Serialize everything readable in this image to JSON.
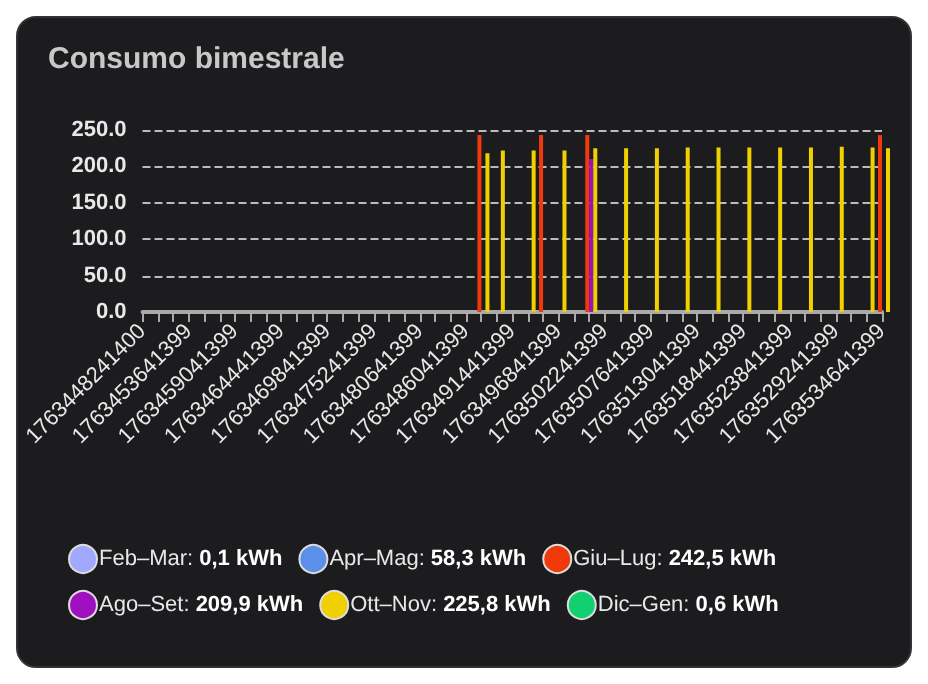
{
  "chart_data": {
    "type": "bar",
    "title": "Consumo bimestrale",
    "categories": [
      "1763448241400",
      null,
      null,
      "1763453641399",
      null,
      null,
      "1763459041399",
      null,
      null,
      "1763464441399",
      null,
      null,
      "1763469841399",
      null,
      null,
      "1763475241399",
      null,
      null,
      "1763480641399",
      null,
      null,
      "1763486041399",
      null,
      null,
      "1763491441399",
      null,
      null,
      "1763496841399",
      null,
      null,
      "1763502241399",
      null,
      null,
      "1763507641399",
      null,
      null,
      "1763513041399",
      null,
      null,
      "1763518441399",
      null,
      null,
      "1763523841399",
      null,
      null,
      "1763529241399",
      null,
      null,
      "1763534641399"
    ],
    "series": [
      {
        "name": "Feb–Mar: 0,1 kWh",
        "color": "#a0a8ff",
        "values": [
          null,
          null,
          null,
          null,
          null,
          null,
          null,
          null,
          null,
          null,
          null,
          null,
          null,
          null,
          null,
          null,
          null,
          null,
          null,
          null,
          null,
          null,
          null,
          null,
          null,
          null,
          null,
          null,
          null,
          null,
          null,
          null,
          null,
          null,
          null,
          null,
          null,
          null,
          null,
          null,
          null,
          null,
          null,
          null,
          null,
          null,
          null,
          null,
          null
        ]
      },
      {
        "name": "Apr–Mag: 58,3 kWh",
        "color": "#5b8fe8",
        "values": [
          null,
          null,
          null,
          null,
          null,
          null,
          null,
          null,
          null,
          null,
          null,
          null,
          null,
          null,
          null,
          null,
          null,
          null,
          null,
          null,
          null,
          null,
          null,
          null,
          null,
          null,
          null,
          null,
          null,
          null,
          null,
          null,
          null,
          null,
          null,
          null,
          null,
          null,
          null,
          null,
          null,
          null,
          null,
          null,
          null,
          null,
          null,
          null,
          null
        ]
      },
      {
        "name": "Giu–Lug: 242,5 kWh",
        "color": "#f03a0c",
        "values": [
          null,
          null,
          null,
          null,
          null,
          null,
          null,
          null,
          null,
          null,
          null,
          null,
          null,
          null,
          null,
          null,
          null,
          null,
          null,
          null,
          null,
          null,
          243,
          null,
          null,
          null,
          243,
          null,
          null,
          243,
          null,
          null,
          null,
          null,
          null,
          null,
          null,
          null,
          null,
          null,
          null,
          null,
          null,
          null,
          null,
          null,
          null,
          null,
          243
        ]
      },
      {
        "name": "Ago–Set: 209,9 kWh",
        "color": "#a010c0",
        "values": [
          null,
          null,
          null,
          null,
          null,
          null,
          null,
          null,
          null,
          null,
          null,
          null,
          null,
          null,
          null,
          null,
          null,
          null,
          null,
          null,
          null,
          null,
          null,
          null,
          null,
          null,
          null,
          null,
          null,
          210,
          null,
          null,
          null,
          null,
          null,
          null,
          null,
          null,
          null,
          null,
          null,
          null,
          null,
          null,
          null,
          null,
          null,
          null,
          null
        ]
      },
      {
        "name": "Ott–Nov: 225,8 kWh",
        "color": "#f0d000",
        "values": [
          null,
          null,
          null,
          null,
          null,
          null,
          null,
          null,
          null,
          null,
          null,
          null,
          null,
          null,
          null,
          null,
          null,
          null,
          null,
          null,
          null,
          null,
          218,
          222,
          null,
          222,
          null,
          222,
          null,
          225,
          null,
          225,
          null,
          225,
          null,
          226,
          null,
          226,
          null,
          226,
          null,
          226,
          null,
          226,
          null,
          227,
          null,
          226,
          225
        ]
      },
      {
        "name": "Dic–Gen: 0,6 kWh",
        "color": "#10d070",
        "values": [
          null,
          null,
          null,
          null,
          null,
          null,
          null,
          null,
          null,
          null,
          null,
          null,
          null,
          null,
          null,
          null,
          null,
          null,
          null,
          null,
          null,
          null,
          null,
          null,
          null,
          null,
          null,
          null,
          null,
          null,
          null,
          null,
          null,
          null,
          null,
          null,
          null,
          null,
          null,
          null,
          null,
          null,
          null,
          null,
          null,
          null,
          null,
          null,
          null
        ]
      }
    ],
    "ylim": [
      0,
      250
    ],
    "yticks": [
      {
        "value": 0,
        "label": "0.0"
      },
      {
        "value": 50,
        "label": "50.0"
      },
      {
        "value": 100,
        "label": "100.0"
      },
      {
        "value": 150,
        "label": "150.0"
      },
      {
        "value": 200,
        "label": "200.0"
      },
      {
        "value": 250,
        "label": "250.0"
      }
    ],
    "grid": "y",
    "legend": "bottom"
  }
}
